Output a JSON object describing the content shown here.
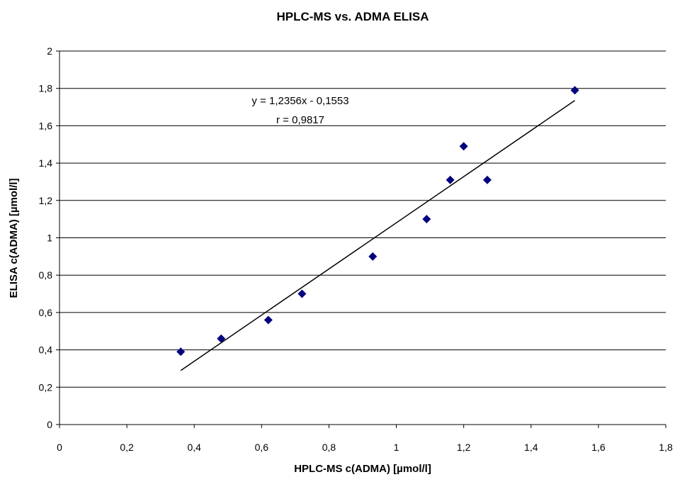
{
  "chart_data": {
    "type": "scatter",
    "title": "HPLC-MS vs. ADMA ELISA",
    "xlabel": "HPLC-MS c(ADMA)  [µmol/l]",
    "ylabel": "ELISA  c(ADMA)  [µmol/l]",
    "xlim": [
      0,
      1.8
    ],
    "ylim": [
      0,
      2
    ],
    "x_ticks": [
      0,
      0.2,
      0.4,
      0.6,
      0.8,
      1,
      1.2,
      1.4,
      1.6,
      1.8
    ],
    "y_ticks": [
      0,
      0.2,
      0.4,
      0.6,
      0.8,
      1,
      1.2,
      1.4,
      1.6,
      1.8,
      2
    ],
    "x_tick_labels": [
      "0",
      "0,2",
      "0,4",
      "0,6",
      "0,8",
      "1",
      "1,2",
      "1,4",
      "1,6",
      "1,8"
    ],
    "y_tick_labels": [
      "0",
      "0,2",
      "0,4",
      "0,6",
      "0,8",
      "1",
      "1,2",
      "1,4",
      "1,6",
      "1,8",
      "2"
    ],
    "grid": "horizontal major gridlines",
    "legend": "none",
    "series": [
      {
        "marker": "diamond",
        "color": "#000080",
        "points": [
          {
            "x": 0.36,
            "y": 0.39
          },
          {
            "x": 0.48,
            "y": 0.46
          },
          {
            "x": 0.62,
            "y": 0.56
          },
          {
            "x": 0.72,
            "y": 0.7
          },
          {
            "x": 0.93,
            "y": 0.9
          },
          {
            "x": 1.09,
            "y": 1.1
          },
          {
            "x": 1.16,
            "y": 1.31
          },
          {
            "x": 1.2,
            "y": 1.49
          },
          {
            "x": 1.27,
            "y": 1.31
          },
          {
            "x": 1.53,
            "y": 1.79
          }
        ]
      }
    ],
    "trendline": {
      "type": "linear",
      "slope": 1.2356,
      "intercept": -0.1553,
      "x_range": [
        0.36,
        1.53
      ],
      "color": "#000000"
    },
    "annotations": [
      "y = 1,2356x - 0,1553",
      "r = 0,9817"
    ]
  }
}
